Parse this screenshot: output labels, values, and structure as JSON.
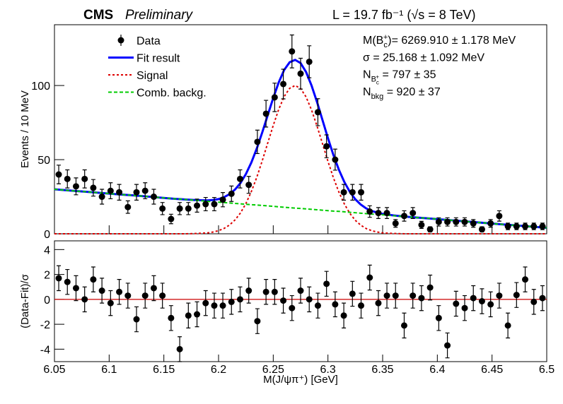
{
  "chart_data": [
    {
      "type": "scatter",
      "title": "CMS",
      "subtitle": "Preliminary",
      "luminosity_label": "L = 19.7 fb⁻¹ (√s = 8 TeV)",
      "ylabel": "Events / 10 MeV",
      "xlim": [
        6.05,
        6.5
      ],
      "ylim": [
        0,
        141
      ],
      "yticks": [
        0,
        50,
        100
      ],
      "x": [
        6.0539,
        6.0618,
        6.0697,
        6.0776,
        6.0855,
        6.0934,
        6.1013,
        6.1092,
        6.1171,
        6.125,
        6.1329,
        6.1408,
        6.1487,
        6.1566,
        6.1645,
        6.1724,
        6.1803,
        6.1882,
        6.1961,
        6.2039,
        6.2118,
        6.2197,
        6.2276,
        6.2355,
        6.2434,
        6.2513,
        6.2592,
        6.2671,
        6.275,
        6.2829,
        6.2908,
        6.2987,
        6.3066,
        6.3145,
        6.3224,
        6.3303,
        6.3382,
        6.3461,
        6.3539,
        6.3618,
        6.3697,
        6.3776,
        6.3855,
        6.3934,
        6.4013,
        6.4092,
        6.4171,
        6.425,
        6.4329,
        6.4408,
        6.4487,
        6.4566,
        6.4645,
        6.4724,
        6.4803,
        6.4882,
        6.4961
      ],
      "series": [
        {
          "name": "Data",
          "color": "#000000",
          "values": [
            40,
            37,
            32,
            37,
            31,
            25,
            29,
            28,
            18,
            28,
            29,
            25,
            17,
            10,
            17,
            17,
            19,
            20,
            20,
            23,
            27,
            37,
            33,
            62,
            81,
            92,
            101,
            123,
            108,
            116,
            82,
            59,
            50,
            28,
            28,
            28,
            15,
            14,
            14,
            7,
            12,
            14,
            6,
            3,
            8,
            8,
            8,
            8,
            7,
            3,
            7,
            12,
            5,
            5,
            5,
            5,
            5
          ],
          "errors": [
            6.3,
            6.1,
            5.7,
            6.1,
            5.6,
            5.0,
            5.4,
            5.3,
            4.2,
            5.3,
            5.4,
            5.0,
            4.1,
            3.2,
            4.1,
            4.1,
            4.4,
            4.5,
            4.5,
            4.8,
            5.2,
            6.1,
            5.7,
            7.9,
            9.0,
            9.6,
            10.0,
            11.1,
            10.4,
            10.8,
            9.1,
            7.7,
            7.1,
            5.3,
            5.3,
            5.3,
            3.9,
            3.7,
            3.7,
            2.6,
            3.5,
            3.7,
            2.4,
            1.7,
            2.8,
            2.8,
            2.8,
            2.8,
            2.6,
            1.7,
            2.6,
            3.5,
            2.2,
            2.2,
            2.2,
            2.2,
            2.2
          ]
        }
      ],
      "curves": {
        "x": [
          6.05,
          6.06,
          6.07,
          6.08,
          6.09,
          6.1,
          6.11,
          6.12,
          6.13,
          6.14,
          6.15,
          6.16,
          6.17,
          6.18,
          6.19,
          6.195,
          6.2,
          6.205,
          6.21,
          6.215,
          6.22,
          6.225,
          6.23,
          6.235,
          6.24,
          6.245,
          6.25,
          6.255,
          6.26,
          6.265,
          6.27,
          6.275,
          6.28,
          6.285,
          6.29,
          6.295,
          6.3,
          6.305,
          6.31,
          6.315,
          6.32,
          6.325,
          6.33,
          6.335,
          6.34,
          6.345,
          6.35,
          6.36,
          6.37,
          6.38,
          6.39,
          6.4,
          6.41,
          6.42,
          6.43,
          6.44,
          6.45,
          6.46,
          6.47,
          6.48,
          6.49,
          6.5
        ],
        "series": [
          {
            "name": "Fit result",
            "color": "#0000ff",
            "style": "solid",
            "values": [
              30.0,
              29.4,
              28.8,
              28.3,
              27.7,
              27.1,
              26.5,
              26.0,
              25.4,
              24.8,
              24.2,
              23.6,
              23.1,
              22.7,
              22.5,
              22.8,
              23.4,
              24.7,
              26.7,
              29.8,
              34.2,
              40.3,
              48.1,
              57.6,
              68.5,
              80.1,
              91.6,
              102.1,
              110.5,
              115.7,
              117.3,
              115.1,
              109.1,
              100.0,
              88.9,
              76.7,
              64.5,
              53.1,
              43.2,
              34.9,
              28.3,
              23.3,
              19.7,
              17.1,
              15.4,
              14.3,
              13.4,
              12.4,
              11.6,
              11.0,
              10.5,
              9.9,
              9.3,
              8.7,
              8.1,
              7.5,
              6.9,
              6.3,
              5.8,
              5.2,
              4.6,
              4.0
            ]
          },
          {
            "name": "Signal",
            "color": "#dd0000",
            "style": "dotted",
            "values": [
              0,
              0,
              0,
              0,
              0,
              0,
              0,
              0,
              0,
              0,
              0,
              0,
              0,
              0.2,
              0.6,
              1.2,
              2.1,
              3.6,
              5.9,
              9.3,
              14.0,
              20.4,
              28.5,
              38.2,
              49.4,
              61.3,
              73.1,
              83.9,
              92.6,
              98.1,
              100.0,
              98.0,
              92.3,
              83.5,
              72.7,
              60.8,
              48.9,
              37.8,
              28.1,
              20.1,
              13.8,
              9.1,
              5.8,
              3.5,
              2.1,
              1.2,
              0.6,
              0.2,
              0,
              0,
              0,
              0,
              0,
              0,
              0,
              0,
              0,
              0,
              0,
              0,
              0,
              0
            ]
          },
          {
            "name": "Comb. backg.",
            "color": "#00cc00",
            "style": "dashed",
            "values": [
              30.0,
              29.4,
              28.8,
              28.3,
              27.7,
              27.1,
              26.5,
              26.0,
              25.4,
              24.8,
              24.2,
              23.6,
              23.1,
              22.5,
              21.9,
              21.6,
              21.3,
              21.1,
              20.8,
              20.5,
              20.2,
              19.9,
              19.6,
              19.4,
              19.1,
              18.8,
              18.5,
              18.2,
              17.9,
              17.6,
              17.3,
              17.1,
              16.8,
              16.5,
              16.2,
              15.9,
              15.6,
              15.3,
              15.1,
              14.8,
              14.5,
              14.2,
              13.9,
              13.6,
              13.3,
              13.1,
              12.8,
              12.2,
              11.6,
              11.0,
              10.5,
              9.9,
              9.3,
              8.7,
              8.1,
              7.5,
              6.9,
              6.3,
              5.8,
              5.2,
              4.6,
              4.0
            ]
          }
        ]
      },
      "legend": "upper left",
      "annotations": [
        [
          {
            "text": "M(B"
          },
          {
            "text": "c",
            "shift": "sub"
          },
          {
            "text": "+",
            "shift": "sup"
          },
          {
            "text": ")= 6269.910  ± 1.178 MeV"
          }
        ],
        [
          {
            "text": "σ = 25.168  ± 1.092 MeV"
          }
        ],
        [
          {
            "text": "N"
          },
          {
            "text": "B",
            "shift": "sub"
          },
          {
            "text": "c",
            "shift": "subsub"
          },
          {
            "text": "+",
            "shift": "subsup"
          },
          {
            "text": " = 797  ± 35"
          }
        ],
        [
          {
            "text": "N"
          },
          {
            "text": "bkg",
            "shift": "sub"
          },
          {
            "text": " = 920  ± 37"
          }
        ]
      ]
    },
    {
      "type": "scatter",
      "ylabel": "(Data-Fit)/σ",
      "xlabel": "M(J/ψπ⁺) [GeV]",
      "xlim": [
        6.05,
        6.5
      ],
      "xticks": [
        6.05,
        6.1,
        6.15,
        6.2,
        6.25,
        6.3,
        6.35,
        6.4,
        6.45,
        6.5
      ],
      "ylim": [
        -5,
        4.7
      ],
      "yticks": [
        -4,
        -2,
        0,
        2,
        4
      ],
      "x": [
        6.0539,
        6.0618,
        6.0697,
        6.0776,
        6.0855,
        6.0934,
        6.1013,
        6.1092,
        6.1171,
        6.125,
        6.1329,
        6.1408,
        6.1487,
        6.1566,
        6.1645,
        6.1724,
        6.1803,
        6.1882,
        6.1961,
        6.2039,
        6.2118,
        6.2197,
        6.2276,
        6.2355,
        6.2434,
        6.2513,
        6.2592,
        6.2671,
        6.275,
        6.2829,
        6.2908,
        6.2987,
        6.3066,
        6.3145,
        6.3224,
        6.3303,
        6.3382,
        6.3461,
        6.3539,
        6.3618,
        6.3697,
        6.3776,
        6.3855,
        6.3934,
        6.4013,
        6.4092,
        6.4171,
        6.425,
        6.4329,
        6.4408,
        6.4487,
        6.4566,
        6.4645,
        6.4724,
        6.4803,
        6.4882,
        6.4961
      ],
      "series": [
        {
          "color": "#000000",
          "values": [
            1.7,
            1.4,
            0.9,
            0,
            1.6,
            0.7,
            -0.3,
            0.6,
            0.3,
            -1.6,
            0.3,
            0.9,
            0.3,
            -1.5,
            -4.0,
            -1.3,
            -1.2,
            -0.3,
            -0.5,
            -0.5,
            -0.2,
            0,
            0.7,
            -1.75,
            0.6,
            0.6,
            -0.1,
            -0.7,
            0.7,
            0,
            -0.5,
            1.25,
            -0.4,
            -1.3,
            0.45,
            -0.5,
            1.75,
            -0.3,
            0.3,
            0.3,
            -2.1,
            0.3,
            0.1,
            0.95,
            -1.5,
            -3.7,
            -0.35,
            -0.7,
            0.1,
            -0.15,
            -0.4,
            0.3,
            -2.1,
            0.35,
            1.6,
            -0.2,
            0.1
          ],
          "errors": [
            1,
            1,
            1,
            1,
            1,
            1,
            1,
            1,
            1,
            1,
            1,
            1,
            1,
            1,
            1,
            1,
            1,
            1,
            1,
            1,
            1,
            1,
            1,
            1,
            1,
            1,
            1,
            1,
            1,
            1,
            1,
            1,
            1,
            1,
            1,
            1,
            1,
            1,
            1,
            1,
            1,
            1,
            1,
            1,
            1,
            1,
            1,
            1,
            1,
            1,
            1,
            1,
            1,
            1,
            1,
            1,
            1
          ]
        }
      ],
      "reference_line": {
        "value": 0,
        "color": "#cc0000"
      }
    }
  ]
}
